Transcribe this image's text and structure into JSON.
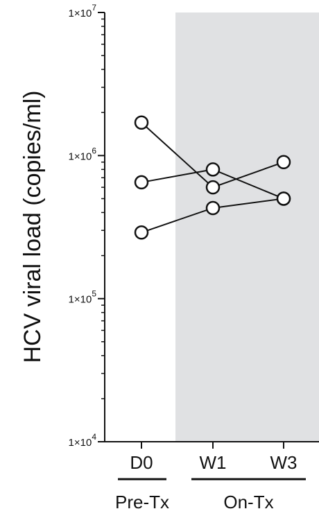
{
  "chart_data": {
    "type": "line",
    "scale": "log",
    "ylabel": "HCV viral load (copies/ml)",
    "ylim": [
      10000,
      10000000
    ],
    "yticks": [
      {
        "value": 10000,
        "base": "1×10",
        "exp": "4"
      },
      {
        "value": 100000,
        "base": "1×10",
        "exp": "5"
      },
      {
        "value": 1000000,
        "base": "1×10",
        "exp": "6"
      },
      {
        "value": 10000000,
        "base": "1×10",
        "exp": "7"
      }
    ],
    "categories": [
      "D0",
      "W1",
      "W3"
    ],
    "groups": [
      {
        "label": "Pre-Tx",
        "categories": [
          "D0"
        ],
        "shaded": false
      },
      {
        "label": "On-Tx",
        "categories": [
          "W1",
          "W3"
        ],
        "shaded": true
      }
    ],
    "series": [
      {
        "values": [
          1700000,
          600000,
          900000
        ]
      },
      {
        "values": [
          650000,
          800000,
          500000
        ]
      },
      {
        "values": [
          290000,
          430000,
          500000
        ]
      }
    ],
    "colors": {
      "shade": "#e0e1e3",
      "line": "#111111",
      "marker_fill": "#ffffff"
    },
    "grid": false,
    "legend": "none"
  }
}
